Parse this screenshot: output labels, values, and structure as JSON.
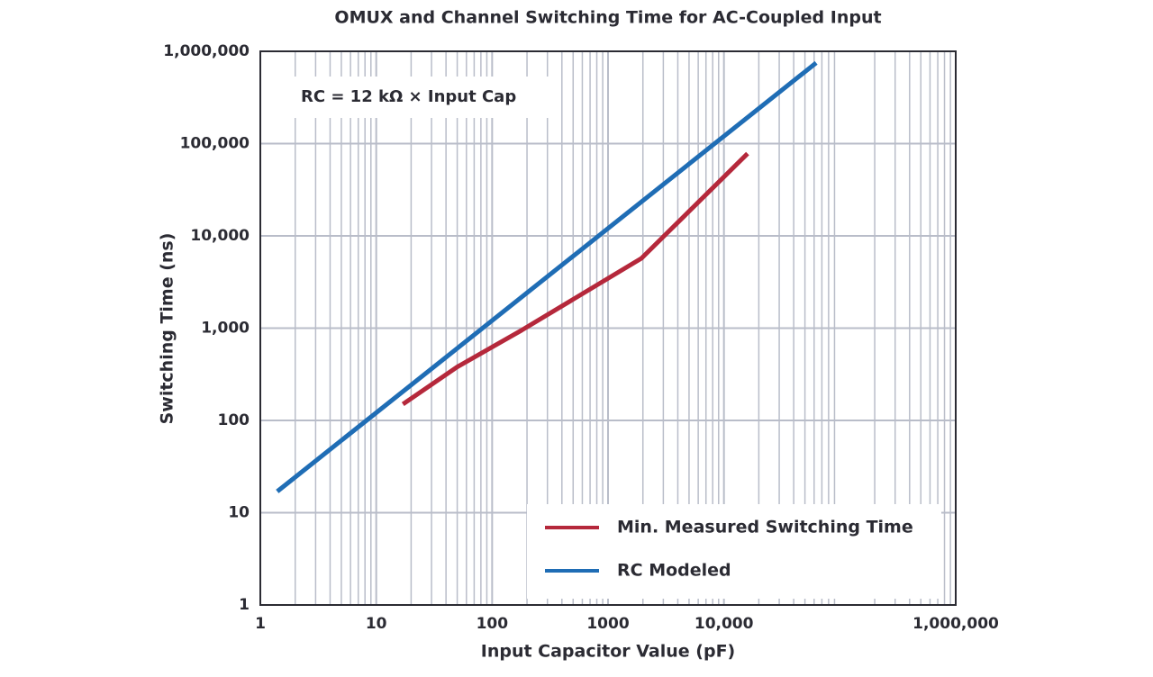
{
  "chart_data": {
    "type": "line",
    "title": "OMUX and Channel Switching Time for AC-Coupled Input",
    "xlabel": "Input Capacitor Value (pF)",
    "ylabel": "Switching Time (ns)",
    "annotation": "RC = 12 kΩ × Input Cap",
    "xscale": "log",
    "yscale": "log",
    "xlim": [
      1,
      1000000
    ],
    "ylim": [
      1,
      1000000
    ],
    "xticks": [
      1,
      10,
      100,
      1000,
      {
        "value": 10000,
        "label": "10,000"
      },
      {
        "value": 1000000,
        "label": "1,000,000"
      }
    ],
    "yticks": [
      1,
      10,
      100,
      {
        "value": 1000,
        "label": "1,000"
      },
      {
        "value": 10000,
        "label": "10,000"
      },
      {
        "value": 100000,
        "label": "100,000"
      },
      {
        "value": 1000000,
        "label": "1,000,000"
      }
    ],
    "grid": true,
    "minor_grid": true,
    "legend": "lower right",
    "series": [
      {
        "name": "Min. Measured Switching Time",
        "color": "#b5283b",
        "x": [
          17,
          50,
          180,
          1940,
          16000
        ],
        "values": [
          150,
          380,
          950,
          5700,
          78000
        ]
      },
      {
        "name": "RC Modeled",
        "color": "#1f6db5",
        "x": [
          1.4,
          62500
        ],
        "values": [
          17,
          750000
        ]
      }
    ]
  }
}
